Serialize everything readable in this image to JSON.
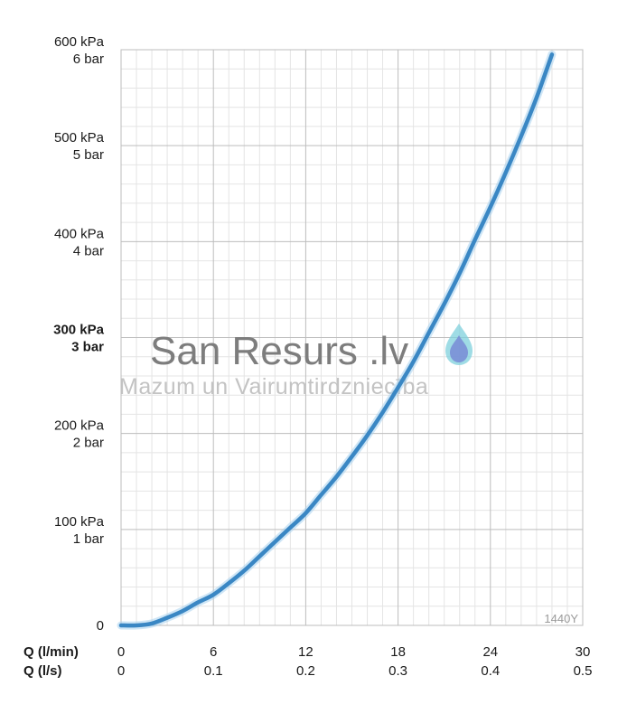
{
  "chart_data": {
    "type": "line",
    "xlabel_primary": "Q (l/min)",
    "xlabel_secondary": "Q (l/s)",
    "xlim": [
      0,
      30
    ],
    "ylim": [
      0,
      600
    ],
    "x_ticks_primary": [
      "0",
      "6",
      "12",
      "18",
      "24",
      "30"
    ],
    "x_ticks_secondary": [
      "0",
      "0.1",
      "0.2",
      "0.3",
      "0.4",
      "0.5"
    ],
    "y_ticks": [
      {
        "value": 0,
        "line1": "0",
        "line2": "",
        "bold": false
      },
      {
        "value": 100,
        "line1": "100 kPa",
        "line2": "1 bar",
        "bold": false
      },
      {
        "value": 200,
        "line1": "200 kPa",
        "line2": "2 bar",
        "bold": false
      },
      {
        "value": 300,
        "line1": "300 kPa",
        "line2": "3 bar",
        "bold": true
      },
      {
        "value": 400,
        "line1": "400 kPa",
        "line2": "4 bar",
        "bold": false
      },
      {
        "value": 500,
        "line1": "500 kPa",
        "line2": "5 bar",
        "bold": false
      },
      {
        "value": 600,
        "line1": "600 kPa",
        "line2": "6 bar",
        "bold": false
      }
    ],
    "grid": true,
    "model_label": "1440Y",
    "series": [
      {
        "x": [
          0,
          1,
          2,
          3,
          4,
          5,
          6,
          7,
          8,
          9,
          10,
          11,
          12,
          13,
          14,
          15,
          16,
          17,
          18,
          19,
          20,
          21,
          22,
          23,
          24,
          25,
          26,
          27,
          28
        ],
        "y": [
          0,
          0,
          2,
          8,
          15,
          24,
          32,
          44,
          57,
          72,
          87,
          102,
          117,
          136,
          155,
          176,
          198,
          222,
          248,
          275,
          305,
          335,
          367,
          402,
          436,
          472,
          510,
          550,
          595
        ],
        "color": "#3a87c4"
      }
    ]
  },
  "watermark": {
    "title": "San Resurs .lv",
    "subtitle": "Mazum un Vairumtirdzniecība"
  },
  "colors": {
    "grid_major": "#bdbdbd",
    "grid_minor": "#e4e4e4",
    "curve": "#3a87c4",
    "drop_outer": "#7fd0dc",
    "drop_inner": "#7a8fd6"
  }
}
